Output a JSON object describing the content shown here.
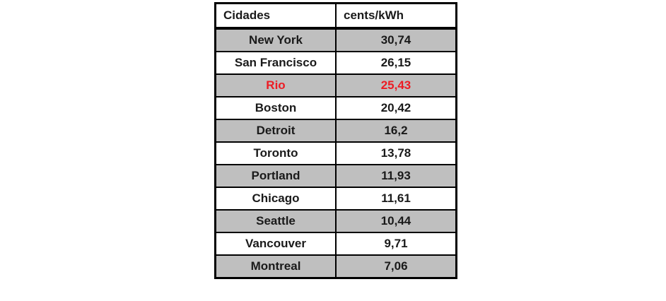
{
  "table": {
    "columns": [
      {
        "label": "Cidades"
      },
      {
        "label": "cents/kWh"
      }
    ],
    "rows": [
      {
        "city": "New York",
        "value": "30,74",
        "shaded": true,
        "highlight": false
      },
      {
        "city": "San Francisco",
        "value": "26,15",
        "shaded": false,
        "highlight": false
      },
      {
        "city": "Rio",
        "value": "25,43",
        "shaded": true,
        "highlight": true
      },
      {
        "city": "Boston",
        "value": "20,42",
        "shaded": false,
        "highlight": false
      },
      {
        "city": "Detroit",
        "value": "16,2",
        "shaded": true,
        "highlight": false
      },
      {
        "city": "Toronto",
        "value": "13,78",
        "shaded": false,
        "highlight": false
      },
      {
        "city": "Portland",
        "value": "11,93",
        "shaded": true,
        "highlight": false
      },
      {
        "city": "Chicago",
        "value": "11,61",
        "shaded": false,
        "highlight": false
      },
      {
        "city": "Seattle",
        "value": "10,44",
        "shaded": true,
        "highlight": false
      },
      {
        "city": "Vancouver",
        "value": "9,71",
        "shaded": false,
        "highlight": false
      },
      {
        "city": "Montreal",
        "value": "7,06",
        "shaded": true,
        "highlight": false
      }
    ]
  },
  "colors": {
    "row_shade": "#BFBFBF",
    "highlight_text": "#ED1C24",
    "border": "#000000",
    "text": "#1A1A1A",
    "background": "#FFFFFF"
  },
  "chart_data": {
    "type": "table",
    "title": "",
    "columns": [
      "Cidades",
      "cents/kWh"
    ],
    "categories": [
      "New York",
      "San Francisco",
      "Rio",
      "Boston",
      "Detroit",
      "Toronto",
      "Portland",
      "Chicago",
      "Seattle",
      "Vancouver",
      "Montreal"
    ],
    "values": [
      30.74,
      26.15,
      25.43,
      20.42,
      16.2,
      13.78,
      11.93,
      11.61,
      10.44,
      9.71,
      7.06
    ],
    "value_unit": "cents/kWh",
    "decimal_separator": ",",
    "highlighted_row": "Rio",
    "layout_hints": {
      "alternating_row_shading": true,
      "header_align": "left",
      "cell_align": "center"
    }
  }
}
